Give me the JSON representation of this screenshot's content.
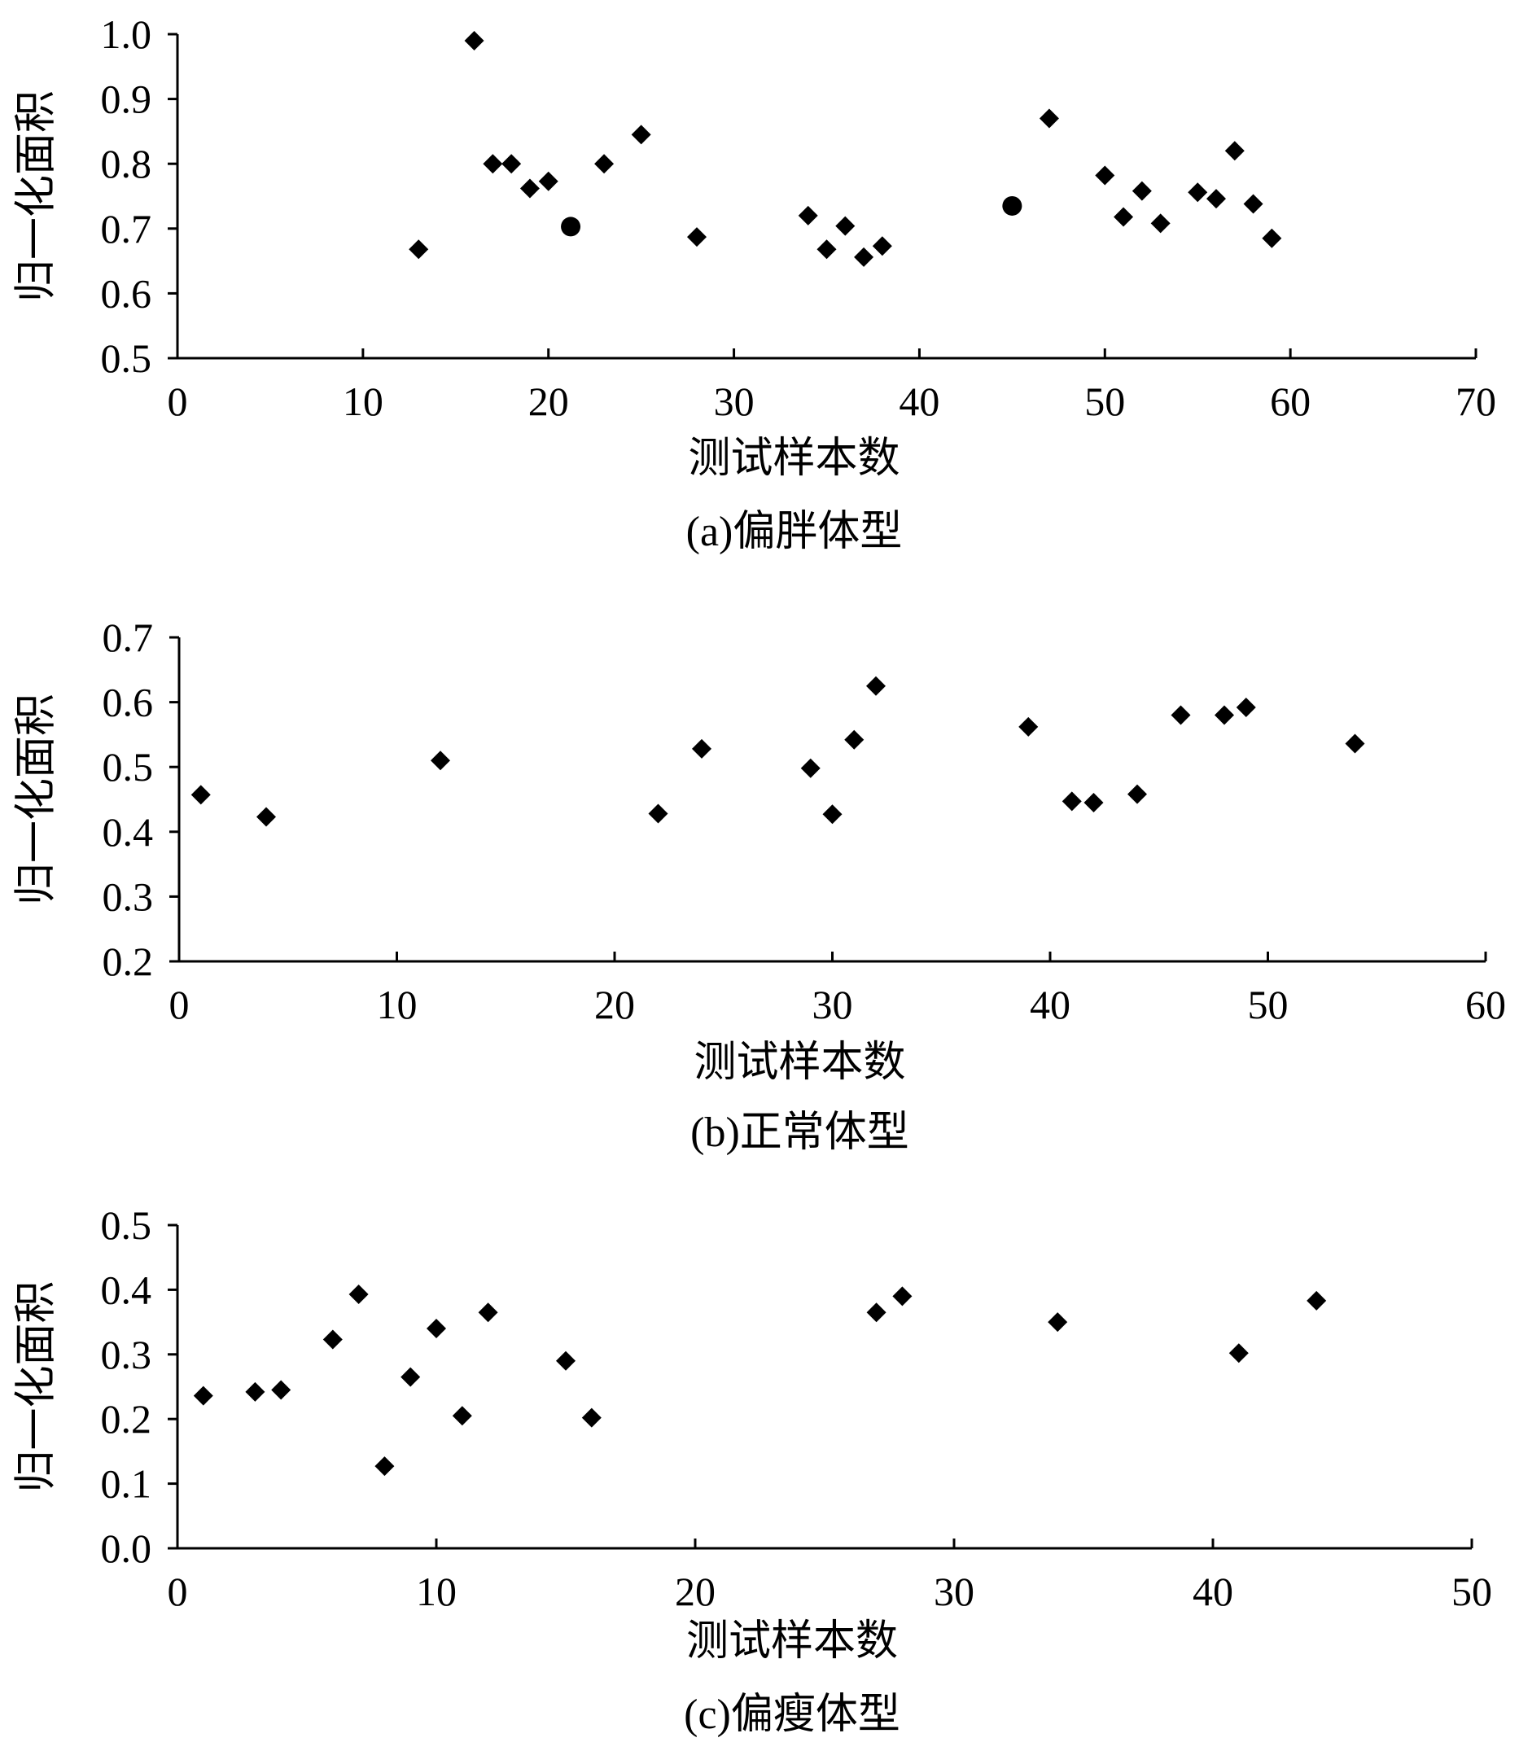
{
  "chart_data": [
    {
      "type": "scatter",
      "caption": "(a)偏胖体型",
      "xlabel": "测试样本数",
      "ylabel": "归一化面积",
      "xlim": [
        0,
        70
      ],
      "ylim": [
        0.5,
        1.0
      ],
      "xticks": [
        0,
        10,
        20,
        30,
        40,
        50,
        60,
        70
      ],
      "yticks": [
        0.5,
        0.6,
        0.7,
        0.8,
        0.9,
        1.0
      ],
      "xtick_labels": [
        "0",
        "10",
        "20",
        "30",
        "40",
        "50",
        "60",
        "70"
      ],
      "ytick_labels": [
        "0.5",
        "0.6",
        "0.7",
        "0.8",
        "0.9",
        "1.0"
      ],
      "marker_color": "#000000",
      "series": [
        {
          "marker": "diamond",
          "points": [
            [
              13,
              0.668
            ],
            [
              16,
              0.99
            ],
            [
              17,
              0.8
            ],
            [
              18,
              0.8
            ],
            [
              19,
              0.762
            ],
            [
              20,
              0.773
            ],
            [
              23,
              0.8
            ],
            [
              25,
              0.845
            ],
            [
              28,
              0.687
            ],
            [
              34,
              0.72
            ],
            [
              35,
              0.668
            ],
            [
              36,
              0.704
            ],
            [
              37,
              0.656
            ],
            [
              38,
              0.673
            ],
            [
              47,
              0.87
            ],
            [
              50,
              0.782
            ],
            [
              51,
              0.718
            ],
            [
              52,
              0.758
            ],
            [
              53,
              0.708
            ],
            [
              55,
              0.756
            ],
            [
              56,
              0.746
            ],
            [
              57,
              0.82
            ],
            [
              58,
              0.738
            ],
            [
              59,
              0.685
            ]
          ]
        },
        {
          "marker": "circle",
          "points": [
            [
              21.2,
              0.703
            ],
            [
              45,
              0.735
            ]
          ]
        }
      ]
    },
    {
      "type": "scatter",
      "caption": "(b)正常体型",
      "xlabel": "测试样本数",
      "ylabel": "归一化面积",
      "xlim": [
        0,
        60
      ],
      "ylim": [
        0.2,
        0.7
      ],
      "xticks": [
        0,
        10,
        20,
        30,
        40,
        50,
        60
      ],
      "yticks": [
        0.2,
        0.3,
        0.4,
        0.5,
        0.6,
        0.7
      ],
      "xtick_labels": [
        "0",
        "10",
        "20",
        "30",
        "40",
        "50",
        "60"
      ],
      "ytick_labels": [
        "0.2",
        "0.3",
        "0.4",
        "0.5",
        "0.6",
        "0.7"
      ],
      "marker_color": "#000000",
      "series": [
        {
          "marker": "diamond",
          "points": [
            [
              1,
              0.457
            ],
            [
              4,
              0.423
            ],
            [
              12,
              0.51
            ],
            [
              22,
              0.428
            ],
            [
              24,
              0.528
            ],
            [
              29,
              0.498
            ],
            [
              30,
              0.427
            ],
            [
              31,
              0.542
            ],
            [
              32,
              0.625
            ],
            [
              39,
              0.562
            ],
            [
              41,
              0.447
            ],
            [
              42,
              0.445
            ],
            [
              44,
              0.458
            ],
            [
              46,
              0.58
            ],
            [
              48,
              0.58
            ],
            [
              49,
              0.592
            ],
            [
              54,
              0.536
            ]
          ]
        }
      ]
    },
    {
      "type": "scatter",
      "caption": "(c)偏瘦体型",
      "xlabel": "测试样本数",
      "ylabel": "归一化面积",
      "xlim": [
        0,
        50
      ],
      "ylim": [
        0.0,
        0.5
      ],
      "xticks": [
        0,
        10,
        20,
        30,
        40,
        50
      ],
      "yticks": [
        0.0,
        0.1,
        0.2,
        0.3,
        0.4,
        0.5
      ],
      "xtick_labels": [
        "0",
        "10",
        "20",
        "30",
        "40",
        "50"
      ],
      "ytick_labels": [
        "0.0",
        "0.1",
        "0.2",
        "0.3",
        "0.4",
        "0.5"
      ],
      "marker_color": "#000000",
      "series": [
        {
          "marker": "diamond",
          "points": [
            [
              1,
              0.236
            ],
            [
              3,
              0.242
            ],
            [
              4,
              0.245
            ],
            [
              6,
              0.323
            ],
            [
              7,
              0.393
            ],
            [
              8,
              0.127
            ],
            [
              9,
              0.265
            ],
            [
              10,
              0.34
            ],
            [
              11,
              0.205
            ],
            [
              12,
              0.365
            ],
            [
              15,
              0.29
            ],
            [
              16,
              0.202
            ],
            [
              27,
              0.365
            ],
            [
              28,
              0.39
            ],
            [
              34,
              0.35
            ],
            [
              41,
              0.302
            ],
            [
              44,
              0.383
            ]
          ]
        }
      ]
    }
  ]
}
